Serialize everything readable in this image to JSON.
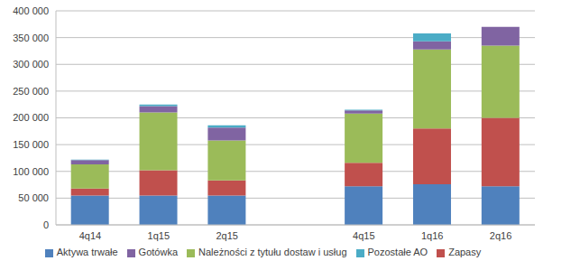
{
  "chart_data": {
    "type": "bar",
    "stacked": true,
    "grid": true,
    "legend": "bottom",
    "categories": [
      "4q14",
      "1q15",
      "2q15",
      null,
      "4q15",
      "1q16",
      "2q16"
    ],
    "series": [
      {
        "name": "Aktywa trwałe",
        "color": "#4F81BD",
        "values": [
          55000,
          55000,
          55000,
          null,
          72000,
          76000,
          72000
        ]
      },
      {
        "name": "Zapasy",
        "color": "#C0504D",
        "values": [
          13000,
          47000,
          28000,
          null,
          44000,
          104000,
          128000
        ]
      },
      {
        "name": "Należności z tytułu dostaw  i usług",
        "color": "#9BBB59",
        "values": [
          45000,
          108000,
          75000,
          null,
          92000,
          148000,
          135000
        ]
      },
      {
        "name": "Gotówka",
        "color": "#8064A2",
        "values": [
          8000,
          12000,
          24000,
          null,
          6000,
          15000,
          35000
        ]
      },
      {
        "name": "Pozostałe AO",
        "color": "#4BACC6",
        "values": [
          1000,
          3000,
          4000,
          null,
          1000,
          15000,
          0
        ]
      }
    ],
    "ylim": [
      0,
      400000
    ],
    "yticks": [
      0,
      {
        "value": 50000,
        "label": "50 000"
      },
      {
        "value": 100000,
        "label": "100 000"
      },
      {
        "value": 150000,
        "label": "150 000"
      },
      {
        "value": 200000,
        "label": "200 000"
      },
      {
        "value": 250000,
        "label": "250 000"
      },
      {
        "value": 300000,
        "label": "300 000"
      },
      {
        "value": 350000,
        "label": "350 000"
      },
      {
        "value": 400000,
        "label": "400 000"
      }
    ]
  }
}
